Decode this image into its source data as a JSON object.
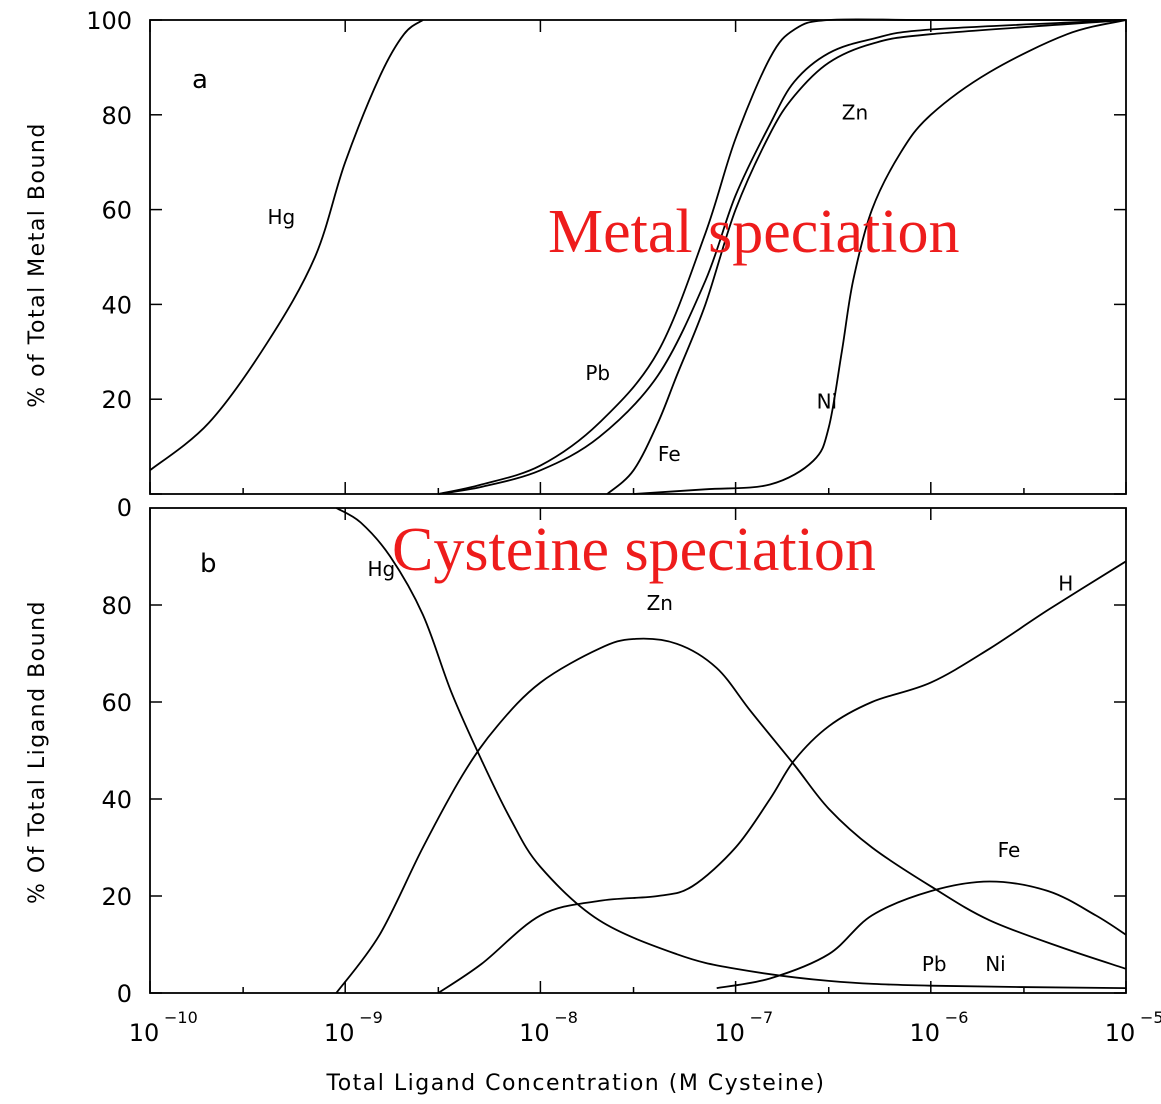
{
  "chart_data": [
    {
      "type": "line",
      "panel": "a",
      "xlabel": "",
      "ylabel": "% of Total Metal Bound",
      "xscale": "log",
      "xlim": [
        1e-10,
        1e-05
      ],
      "ylim": [
        0,
        100
      ],
      "yticks": [
        0,
        20,
        40,
        60,
        80,
        100
      ],
      "overlay_title": "Metal speciation",
      "series": [
        {
          "name": "Hg",
          "label_at": [
            4e-10,
            57
          ],
          "x": [
            1e-10,
            2e-10,
            4e-10,
            7e-10,
            1e-09,
            1.5e-09,
            2e-09,
            2.5e-09
          ],
          "y": [
            5,
            15,
            32,
            50,
            70,
            88,
            97,
            100
          ]
        },
        {
          "name": "Pb",
          "label_at": [
            1.7e-08,
            24
          ],
          "x": [
            3e-09,
            5e-09,
            1e-08,
            2e-08,
            4e-08,
            7e-08,
            1e-07,
            1.5e-07,
            2e-07,
            3e-07,
            1e-06,
            1e-05
          ],
          "y": [
            0,
            2,
            6,
            15,
            30,
            55,
            75,
            92,
            98,
            100,
            100,
            100
          ]
        },
        {
          "name": "Zn",
          "label_at": [
            3.5e-07,
            79
          ],
          "x": [
            3e-09,
            5e-09,
            1e-08,
            2e-08,
            4e-08,
            7e-08,
            1e-07,
            1.5e-07,
            2e-07,
            3e-07,
            5e-07,
            1e-06,
            1e-05
          ],
          "y": [
            0,
            1.5,
            5,
            12,
            25,
            45,
            63,
            78,
            87,
            93,
            96,
            98,
            100
          ]
        },
        {
          "name": "Fe",
          "label_at": [
            4e-08,
            7
          ],
          "x": [
            2.2e-08,
            3e-08,
            4e-08,
            5e-08,
            7e-08,
            1e-07,
            1.5e-07,
            2e-07,
            3e-07,
            5e-07,
            1e-06,
            1e-05
          ],
          "y": [
            0,
            5,
            15,
            25,
            40,
            60,
            76,
            84,
            91,
            95,
            97,
            100
          ]
        },
        {
          "name": "Ni",
          "label_at": [
            2.6e-07,
            18
          ],
          "x": [
            3e-08,
            7e-08,
            1.5e-07,
            2.5e-07,
            3e-07,
            3.5e-07,
            4e-07,
            5e-07,
            7e-07,
            1e-06,
            2e-06,
            5e-06,
            1e-05
          ],
          "y": [
            0,
            1,
            2,
            7,
            14,
            30,
            45,
            60,
            72,
            80,
            89,
            97,
            100
          ]
        }
      ]
    },
    {
      "type": "line",
      "panel": "b",
      "xlabel": "Total Ligand Concentration (M Cysteine)",
      "ylabel": "% Of Total Ligand Bound",
      "xscale": "log",
      "xlim": [
        1e-10,
        1e-05
      ],
      "ylim": [
        0,
        100
      ],
      "yticks": [
        0,
        20,
        40,
        60,
        80
      ],
      "xticks": [
        1e-10,
        1e-09,
        1e-08,
        1e-07,
        1e-06,
        1e-05
      ],
      "overlay_title": "Cysteine speciation",
      "series": [
        {
          "name": "Hg",
          "label_at": [
            1.3e-09,
            86
          ],
          "x": [
            9e-10,
            1.2e-09,
            1.7e-09,
            2.5e-09,
            3.5e-09,
            5e-09,
            7e-09,
            1e-08,
            2e-08,
            5e-08,
            1e-07,
            3e-07,
            1e-06,
            1e-05
          ],
          "y": [
            100,
            97,
            90,
            78,
            62,
            48,
            36,
            26,
            15,
            8,
            5,
            2.5,
            1.5,
            1
          ]
        },
        {
          "name": "Zn",
          "label_at": [
            3.5e-08,
            79
          ],
          "x": [
            9e-10,
            1.5e-09,
            2.5e-09,
            4e-09,
            6e-09,
            1e-08,
            2e-08,
            3e-08,
            5e-08,
            8e-08,
            1.2e-07,
            2e-07,
            3e-07,
            5e-07,
            1e-06,
            2e-06,
            5e-06,
            1e-05
          ],
          "y": [
            0,
            12,
            30,
            45,
            55,
            64,
            71,
            73,
            72,
            67,
            58,
            47,
            38,
            30,
            22,
            15,
            9,
            5
          ]
        },
        {
          "name": "H",
          "label_at": [
            4.5e-06,
            83
          ],
          "x": [
            3e-09,
            5e-09,
            1e-08,
            2e-08,
            4e-08,
            6e-08,
            1e-07,
            1.5e-07,
            2e-07,
            3e-07,
            5e-07,
            1e-06,
            2e-06,
            4e-06,
            1e-05
          ],
          "y": [
            0,
            6,
            16,
            19,
            20,
            22,
            30,
            40,
            48,
            55,
            60,
            64,
            71,
            79,
            89
          ]
        },
        {
          "name": "Fe",
          "label_at": [
            2.2e-06,
            28
          ],
          "x": [
            8e-08,
            1.5e-07,
            3e-07,
            5e-07,
            1e-06,
            2e-06,
            4e-06,
            7e-06,
            1e-05
          ],
          "y": [
            1,
            3,
            8,
            16,
            21,
            23,
            21,
            16,
            12
          ]
        },
        {
          "name": "Pb",
          "label_at": [
            9e-07,
            4.5
          ],
          "x": [],
          "y": []
        },
        {
          "name": "Ni",
          "label_at": [
            1.9e-06,
            4.5
          ],
          "x": [],
          "y": []
        }
      ]
    }
  ],
  "panel_letters": {
    "a": "a",
    "b": "b"
  },
  "tick_labels": {
    "y_top": [
      "100",
      "80",
      "60",
      "40",
      "20",
      "0"
    ],
    "y_bottom": [
      "80",
      "60",
      "40",
      "20",
      "0"
    ],
    "x_base": "10",
    "x_exponents": [
      "−10",
      "−9",
      "−8",
      "−7",
      "−6",
      "−5"
    ]
  }
}
